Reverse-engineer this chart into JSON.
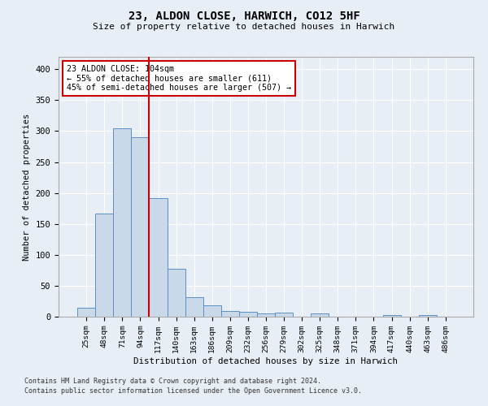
{
  "title": "23, ALDON CLOSE, HARWICH, CO12 5HF",
  "subtitle": "Size of property relative to detached houses in Harwich",
  "xlabel": "Distribution of detached houses by size in Harwich",
  "ylabel": "Number of detached properties",
  "categories": [
    "25sqm",
    "48sqm",
    "71sqm",
    "94sqm",
    "117sqm",
    "140sqm",
    "163sqm",
    "186sqm",
    "209sqm",
    "232sqm",
    "256sqm",
    "279sqm",
    "302sqm",
    "325sqm",
    "348sqm",
    "371sqm",
    "394sqm",
    "417sqm",
    "440sqm",
    "463sqm",
    "486sqm"
  ],
  "values": [
    15,
    167,
    305,
    290,
    191,
    77,
    32,
    18,
    9,
    8,
    5,
    6,
    0,
    5,
    0,
    0,
    0,
    3,
    0,
    3,
    0
  ],
  "bar_color": "#c9d9ea",
  "bar_edge_color": "#5b8fc4",
  "marker_bin_index": 3,
  "marker_color": "#cc0000",
  "annotation_text": "23 ALDON CLOSE: 104sqm\n← 55% of detached houses are smaller (611)\n45% of semi-detached houses are larger (507) →",
  "annotation_box_color": "#ffffff",
  "annotation_box_edge_color": "#cc0000",
  "background_color": "#e8eef5",
  "grid_color": "#ffffff",
  "ylim": [
    0,
    420
  ],
  "yticks": [
    0,
    50,
    100,
    150,
    200,
    250,
    300,
    350,
    400
  ],
  "footnote1": "Contains HM Land Registry data © Crown copyright and database right 2024.",
  "footnote2": "Contains public sector information licensed under the Open Government Licence v3.0."
}
